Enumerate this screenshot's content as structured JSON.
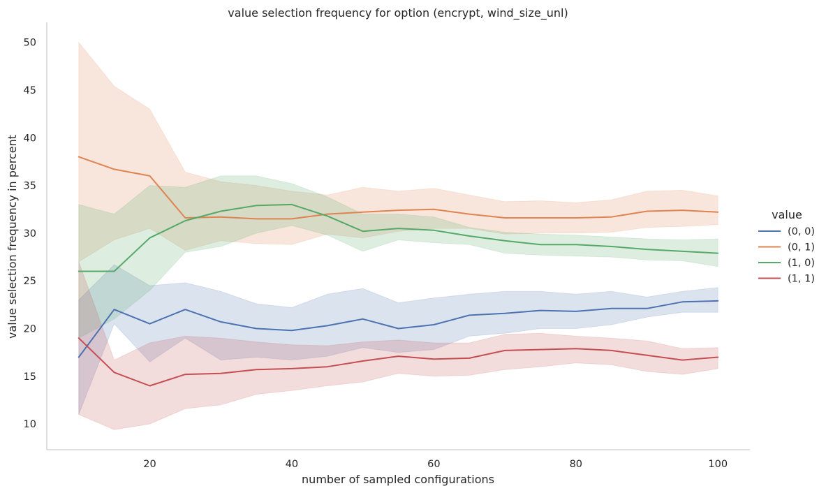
{
  "chart_data": {
    "type": "line",
    "title": "value selection frequency for option (encrypt, wind_size_unl)",
    "xlabel": "number of sampled configurations",
    "ylabel": "value selection frequency in percent",
    "xlim": [
      5.5,
      104.5
    ],
    "ylim": [
      7.3,
      52.1
    ],
    "xticks": [
      20,
      40,
      60,
      80,
      100
    ],
    "yticks": [
      10,
      15,
      20,
      25,
      30,
      35,
      40,
      45,
      50
    ],
    "grid": false,
    "legend": {
      "title": "value",
      "placement": "right"
    },
    "x": [
      10,
      15,
      20,
      25,
      30,
      35,
      40,
      45,
      50,
      55,
      60,
      65,
      70,
      75,
      80,
      85,
      90,
      95,
      100
    ],
    "series": [
      {
        "name": "(0, 0)",
        "color": "#4c72b0",
        "values": [
          17.0,
          22.0,
          20.5,
          22.0,
          20.7,
          20.0,
          19.8,
          20.3,
          21.0,
          20.0,
          20.4,
          21.4,
          21.6,
          21.9,
          21.8,
          22.1,
          22.1,
          22.8,
          22.9
        ],
        "lower": [
          11.0,
          20.5,
          16.5,
          19.0,
          16.7,
          17.0,
          16.7,
          17.1,
          18.0,
          17.5,
          17.8,
          19.2,
          19.5,
          20.0,
          20.0,
          20.4,
          21.2,
          21.7,
          21.7
        ],
        "upper": [
          23.0,
          26.7,
          24.5,
          24.8,
          23.9,
          22.6,
          22.2,
          23.6,
          24.2,
          22.7,
          23.2,
          23.6,
          23.9,
          23.9,
          23.6,
          23.9,
          23.3,
          23.9,
          24.3
        ]
      },
      {
        "name": "(0, 1)",
        "color": "#dd8452",
        "values": [
          38.0,
          36.7,
          36.0,
          31.6,
          31.7,
          31.5,
          31.5,
          32.0,
          32.2,
          32.4,
          32.5,
          32.0,
          31.6,
          31.6,
          31.6,
          31.7,
          32.3,
          32.4,
          32.2
        ],
        "lower": [
          27.0,
          29.3,
          30.5,
          28.2,
          29.2,
          28.9,
          28.8,
          29.9,
          29.5,
          30.2,
          30.5,
          30.5,
          29.9,
          30.0,
          30.0,
          30.1,
          30.6,
          30.7,
          30.9
        ],
        "upper": [
          50.0,
          45.4,
          43.0,
          36.4,
          35.4,
          35.0,
          34.4,
          34.0,
          34.8,
          34.4,
          34.7,
          34.0,
          33.3,
          33.4,
          33.2,
          33.5,
          34.4,
          34.5,
          33.9
        ]
      },
      {
        "name": "(1, 0)",
        "color": "#55a868",
        "values": [
          26.0,
          26.0,
          29.5,
          31.3,
          32.3,
          32.9,
          33.0,
          31.8,
          30.2,
          30.5,
          30.3,
          29.7,
          29.2,
          28.8,
          28.8,
          28.6,
          28.3,
          28.1,
          27.9
        ],
        "lower": [
          19.0,
          21.0,
          24.0,
          28.0,
          28.6,
          30.0,
          30.8,
          29.8,
          28.1,
          29.3,
          29.0,
          28.8,
          27.9,
          27.7,
          27.6,
          27.5,
          27.2,
          27.1,
          26.5
        ],
        "upper": [
          33.0,
          32.0,
          35.0,
          34.8,
          36.0,
          36.0,
          35.2,
          33.8,
          32.0,
          32.0,
          31.7,
          30.6,
          30.1,
          29.9,
          29.8,
          29.6,
          29.4,
          29.3,
          29.4
        ]
      },
      {
        "name": "(1, 1)",
        "color": "#c44e52",
        "values": [
          19.0,
          15.4,
          14.0,
          15.2,
          15.3,
          15.7,
          15.8,
          16.0,
          16.6,
          17.1,
          16.8,
          16.9,
          17.7,
          17.8,
          17.9,
          17.7,
          17.2,
          16.7,
          17.0
        ],
        "lower": [
          11.0,
          9.4,
          10.0,
          11.6,
          12.0,
          13.1,
          13.5,
          14.0,
          14.4,
          15.3,
          15.0,
          15.1,
          15.7,
          16.0,
          16.4,
          16.2,
          15.5,
          15.2,
          15.8
        ],
        "upper": [
          27.0,
          16.7,
          18.5,
          19.2,
          19.0,
          18.6,
          18.3,
          18.2,
          18.6,
          18.8,
          18.5,
          18.5,
          19.4,
          19.5,
          19.2,
          19.0,
          18.7,
          17.9,
          18.0
        ]
      }
    ]
  }
}
